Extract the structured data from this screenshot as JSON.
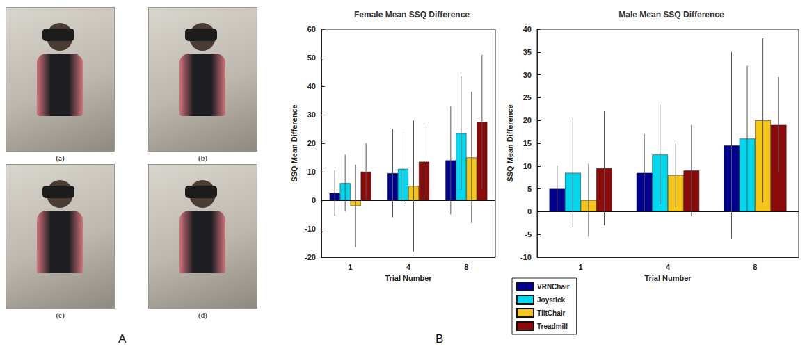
{
  "panel_labels": [
    "A",
    "B"
  ],
  "photo_captions": [
    "(a)",
    "(b)",
    "(c)",
    "(d)"
  ],
  "legend": "bottom",
  "chart_data": [
    {
      "type": "bar",
      "title": "Female Mean SSQ Difference",
      "x_label": "Trial Number",
      "y_label": "SSQ Mean Difference",
      "categories": [
        "1",
        "4",
        "8"
      ],
      "ylim": [
        -20,
        60
      ],
      "yticks": [
        -20,
        -10,
        0,
        10,
        20,
        30,
        40,
        50,
        60
      ],
      "grid": false,
      "series": [
        {
          "name": "VRNChair",
          "color": "#00008f",
          "values": [
            2.5,
            9.5,
            14
          ],
          "errors": [
            8,
            15.5,
            19
          ]
        },
        {
          "name": "Joystick",
          "color": "#00d8f0",
          "values": [
            6,
            11,
            23.5
          ],
          "errors": [
            10,
            12.5,
            20
          ]
        },
        {
          "name": "TiltChair",
          "color": "#f5c518",
          "values": [
            -2,
            5,
            15
          ],
          "errors": [
            14.5,
            23,
            23
          ]
        },
        {
          "name": "Treadmill",
          "color": "#8b0a0a",
          "values": [
            10,
            13.5,
            27.5
          ],
          "errors": [
            10,
            13.5,
            23.5
          ]
        }
      ]
    },
    {
      "type": "bar",
      "title": "Male Mean SSQ Difference",
      "x_label": "Trial Number",
      "y_label": "SSQ Mean Difference",
      "categories": [
        "1",
        "4",
        "8"
      ],
      "ylim": [
        -10,
        40
      ],
      "yticks": [
        -10,
        -5,
        0,
        5,
        10,
        15,
        20,
        25,
        30,
        35,
        40
      ],
      "grid": false,
      "series": [
        {
          "name": "VRNChair",
          "color": "#00008f",
          "values": [
            5,
            8.5,
            14.5
          ],
          "errors": [
            5,
            8.5,
            20.5
          ]
        },
        {
          "name": "Joystick",
          "color": "#00d8f0",
          "values": [
            8.5,
            12.5,
            16
          ],
          "errors": [
            12,
            11,
            16
          ]
        },
        {
          "name": "TiltChair",
          "color": "#f5c518",
          "values": [
            2.5,
            8,
            20
          ],
          "errors": [
            8,
            7,
            18
          ]
        },
        {
          "name": "Treadmill",
          "color": "#8b0a0a",
          "values": [
            9.5,
            9,
            19
          ],
          "errors": [
            12.5,
            10,
            10.5
          ]
        }
      ]
    }
  ]
}
